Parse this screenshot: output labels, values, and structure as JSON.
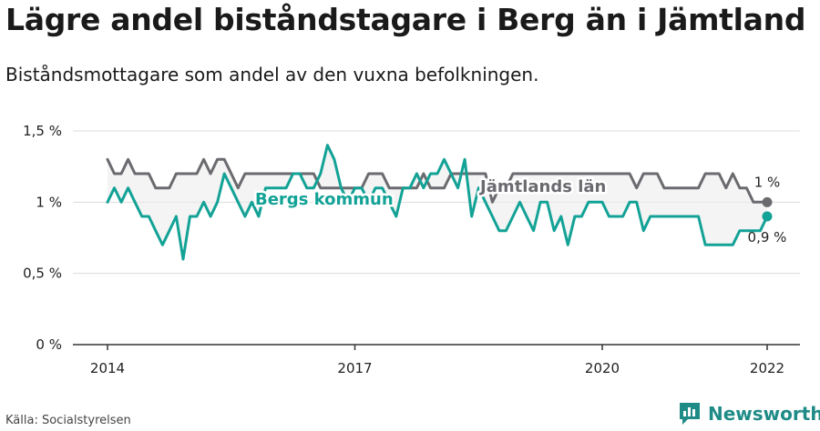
{
  "title": "Lägre andel biståndstagare i Berg än i Jämtland",
  "subtitle": "Biståndsmottagare som andel av den vuxna befolkningen.",
  "source": "Källa: Socialstyrelsen",
  "brand": {
    "name": "Newsworthy",
    "icon": "newsworthy-logo-icon",
    "color": "#1f8b87"
  },
  "chart_data": {
    "type": "line",
    "x_range": [
      2014.0,
      2022.0
    ],
    "y_range": [
      0,
      1.5
    ],
    "y_ticks": [
      {
        "value": 0,
        "label": "0 %"
      },
      {
        "value": 0.5,
        "label": "0,5 %"
      },
      {
        "value": 1,
        "label": "1 %"
      },
      {
        "value": 1.5,
        "label": "1,5 %"
      }
    ],
    "x_ticks": [
      {
        "value": 2014,
        "label": "2014"
      },
      {
        "value": 2017,
        "label": "2017"
      },
      {
        "value": 2020,
        "label": "2020"
      },
      {
        "value": 2022,
        "label": "2022"
      }
    ],
    "grid": true,
    "series": [
      {
        "name": "Jämtlands län",
        "color": "#6b6a6f",
        "end_label": "1 %",
        "x": [
          2014.0,
          2014.083,
          2014.167,
          2014.25,
          2014.333,
          2014.417,
          2014.5,
          2014.583,
          2014.667,
          2014.75,
          2014.833,
          2014.917,
          2015.0,
          2015.083,
          2015.167,
          2015.25,
          2015.333,
          2015.417,
          2015.5,
          2015.583,
          2015.667,
          2015.75,
          2015.833,
          2015.917,
          2016.0,
          2016.083,
          2016.167,
          2016.25,
          2016.333,
          2016.417,
          2016.5,
          2016.583,
          2016.667,
          2016.75,
          2016.833,
          2016.917,
          2017.0,
          2017.083,
          2017.167,
          2017.25,
          2017.333,
          2017.417,
          2017.5,
          2017.583,
          2017.667,
          2017.75,
          2017.833,
          2017.917,
          2018.0,
          2018.083,
          2018.167,
          2018.25,
          2018.333,
          2018.417,
          2018.5,
          2018.583,
          2018.667,
          2018.75,
          2018.833,
          2018.917,
          2019.0,
          2019.083,
          2019.167,
          2019.25,
          2019.333,
          2019.417,
          2019.5,
          2019.583,
          2019.667,
          2019.75,
          2019.833,
          2019.917,
          2020.0,
          2020.083,
          2020.167,
          2020.25,
          2020.333,
          2020.417,
          2020.5,
          2020.583,
          2020.667,
          2020.75,
          2020.833,
          2020.917,
          2021.0,
          2021.083,
          2021.167,
          2021.25,
          2021.333,
          2021.417,
          2021.5,
          2021.583,
          2021.667,
          2021.75,
          2021.833,
          2021.917,
          2022.0
        ],
        "y": [
          1.3,
          1.2,
          1.2,
          1.3,
          1.2,
          1.2,
          1.2,
          1.1,
          1.1,
          1.1,
          1.2,
          1.2,
          1.2,
          1.2,
          1.3,
          1.2,
          1.3,
          1.3,
          1.2,
          1.1,
          1.2,
          1.2,
          1.2,
          1.2,
          1.2,
          1.2,
          1.2,
          1.2,
          1.2,
          1.2,
          1.2,
          1.1,
          1.1,
          1.1,
          1.1,
          1.1,
          1.1,
          1.1,
          1.2,
          1.2,
          1.2,
          1.1,
          1.1,
          1.1,
          1.1,
          1.1,
          1.2,
          1.1,
          1.1,
          1.1,
          1.2,
          1.2,
          1.2,
          1.2,
          1.2,
          1.2,
          1.0,
          1.1,
          1.1,
          1.2,
          1.2,
          1.2,
          1.2,
          1.2,
          1.2,
          1.2,
          1.2,
          1.2,
          1.2,
          1.2,
          1.2,
          1.2,
          1.2,
          1.2,
          1.2,
          1.2,
          1.2,
          1.1,
          1.2,
          1.2,
          1.2,
          1.1,
          1.1,
          1.1,
          1.1,
          1.1,
          1.1,
          1.2,
          1.2,
          1.2,
          1.1,
          1.2,
          1.1,
          1.1,
          1.0,
          1.0,
          1.0
        ]
      },
      {
        "name": "Bergs kommun",
        "color": "#13a296",
        "end_label": "0,9 %",
        "x": [
          2014.0,
          2014.083,
          2014.167,
          2014.25,
          2014.333,
          2014.417,
          2014.5,
          2014.583,
          2014.667,
          2014.75,
          2014.833,
          2014.917,
          2015.0,
          2015.083,
          2015.167,
          2015.25,
          2015.333,
          2015.417,
          2015.5,
          2015.583,
          2015.667,
          2015.75,
          2015.833,
          2015.917,
          2016.0,
          2016.083,
          2016.167,
          2016.25,
          2016.333,
          2016.417,
          2016.5,
          2016.583,
          2016.667,
          2016.75,
          2016.833,
          2016.917,
          2017.0,
          2017.083,
          2017.167,
          2017.25,
          2017.333,
          2017.417,
          2017.5,
          2017.583,
          2017.667,
          2017.75,
          2017.833,
          2017.917,
          2018.0,
          2018.083,
          2018.167,
          2018.25,
          2018.333,
          2018.417,
          2018.5,
          2018.583,
          2018.667,
          2018.75,
          2018.833,
          2018.917,
          2019.0,
          2019.083,
          2019.167,
          2019.25,
          2019.333,
          2019.417,
          2019.5,
          2019.583,
          2019.667,
          2019.75,
          2019.833,
          2019.917,
          2020.0,
          2020.083,
          2020.167,
          2020.25,
          2020.333,
          2020.417,
          2020.5,
          2020.583,
          2020.667,
          2020.75,
          2020.833,
          2020.917,
          2021.0,
          2021.083,
          2021.167,
          2021.25,
          2021.333,
          2021.417,
          2021.5,
          2021.583,
          2021.667,
          2021.75,
          2021.833,
          2021.917,
          2022.0
        ],
        "y": [
          1.0,
          1.1,
          1.0,
          1.1,
          1.0,
          0.9,
          0.9,
          0.8,
          0.7,
          0.8,
          0.9,
          0.6,
          0.9,
          0.9,
          1.0,
          0.9,
          1.0,
          1.2,
          1.1,
          1.0,
          0.9,
          1.0,
          0.9,
          1.1,
          1.1,
          1.1,
          1.1,
          1.2,
          1.2,
          1.1,
          1.1,
          1.2,
          1.4,
          1.3,
          1.1,
          1.0,
          1.1,
          1.1,
          1.0,
          1.1,
          1.1,
          1.0,
          0.9,
          1.1,
          1.1,
          1.2,
          1.1,
          1.2,
          1.2,
          1.3,
          1.2,
          1.1,
          1.3,
          0.9,
          1.1,
          1.0,
          0.9,
          0.8,
          0.8,
          0.9,
          1.0,
          0.9,
          0.8,
          1.0,
          1.0,
          0.8,
          0.9,
          0.7,
          0.9,
          0.9,
          1.0,
          1.0,
          1.0,
          0.9,
          0.9,
          0.9,
          1.0,
          1.0,
          0.8,
          0.9,
          0.9,
          0.9,
          0.9,
          0.9,
          0.9,
          0.9,
          0.9,
          0.7,
          0.7,
          0.7,
          0.7,
          0.7,
          0.8,
          0.8,
          0.8,
          0.8,
          0.9
        ]
      }
    ]
  }
}
